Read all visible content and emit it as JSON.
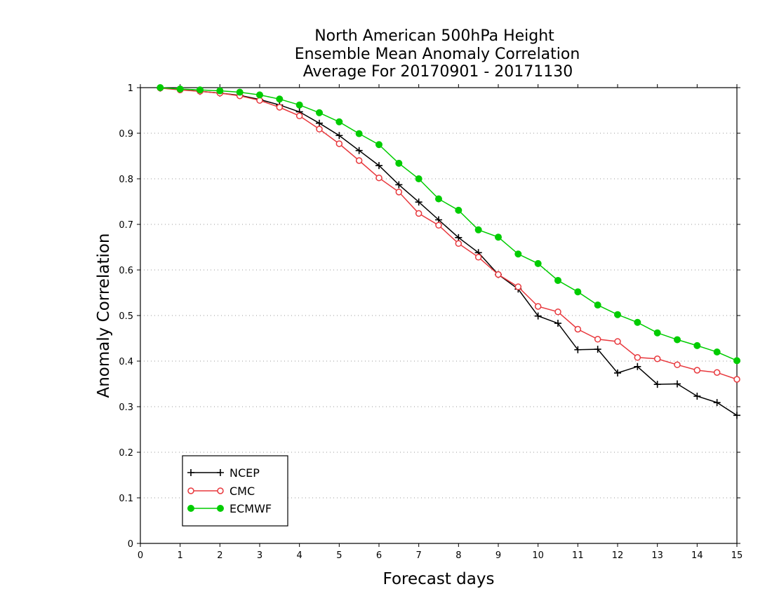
{
  "chart_data": {
    "type": "line",
    "title_lines": [
      "North American 500hPa Height",
      "Ensemble Mean Anomaly Correlation",
      "Average For 20170901 - 20171130"
    ],
    "xlabel": "Forecast days",
    "ylabel": "Anomaly Correlation",
    "xlim": [
      0,
      15
    ],
    "ylim": [
      0,
      1
    ],
    "x_ticks": [
      "0",
      "1",
      "2",
      "3",
      "4",
      "5",
      "6",
      "7",
      "8",
      "9",
      "10",
      "11",
      "12",
      "13",
      "14",
      "15"
    ],
    "y_ticks": [
      "0",
      "0.1",
      "0.2",
      "0.3",
      "0.4",
      "0.5",
      "0.6",
      "0.7",
      "0.8",
      "0.9",
      "1"
    ],
    "grid": true,
    "legend_position": "bottom-left",
    "x": [
      0.5,
      1,
      1.5,
      2,
      2.5,
      3,
      3.5,
      4,
      4.5,
      5,
      5.5,
      6,
      6.5,
      7,
      7.5,
      8,
      8.5,
      9,
      9.5,
      10,
      10.5,
      11,
      11.5,
      12,
      12.5,
      13,
      13.5,
      14,
      14.5,
      15
    ],
    "series": [
      {
        "name": "NCEP",
        "color": "#000000",
        "marker": "plus",
        "values": [
          0.999,
          0.996,
          0.992,
          0.988,
          0.983,
          0.974,
          0.962,
          0.947,
          0.922,
          0.895,
          0.862,
          0.829,
          0.787,
          0.749,
          0.71,
          0.671,
          0.638,
          0.59,
          0.558,
          0.499,
          0.483,
          0.425,
          0.426,
          0.374,
          0.388,
          0.349,
          0.35,
          0.323,
          0.309,
          0.281
        ]
      },
      {
        "name": "CMC",
        "color": "#e8383d",
        "marker": "open-circle",
        "values": [
          0.999,
          0.995,
          0.992,
          0.988,
          0.982,
          0.972,
          0.957,
          0.938,
          0.909,
          0.877,
          0.84,
          0.802,
          0.771,
          0.724,
          0.698,
          0.658,
          0.628,
          0.59,
          0.563,
          0.52,
          0.508,
          0.47,
          0.448,
          0.443,
          0.408,
          0.405,
          0.392,
          0.38,
          0.375,
          0.36
        ]
      },
      {
        "name": "ECMWF",
        "color": "#00cc00",
        "marker": "filled-circle",
        "values": [
          1.0,
          0.997,
          0.995,
          0.993,
          0.99,
          0.984,
          0.975,
          0.962,
          0.945,
          0.925,
          0.899,
          0.875,
          0.834,
          0.8,
          0.756,
          0.731,
          0.688,
          0.672,
          0.635,
          0.614,
          0.577,
          0.552,
          0.523,
          0.502,
          0.485,
          0.462,
          0.447,
          0.434,
          0.42,
          0.401
        ]
      }
    ]
  }
}
